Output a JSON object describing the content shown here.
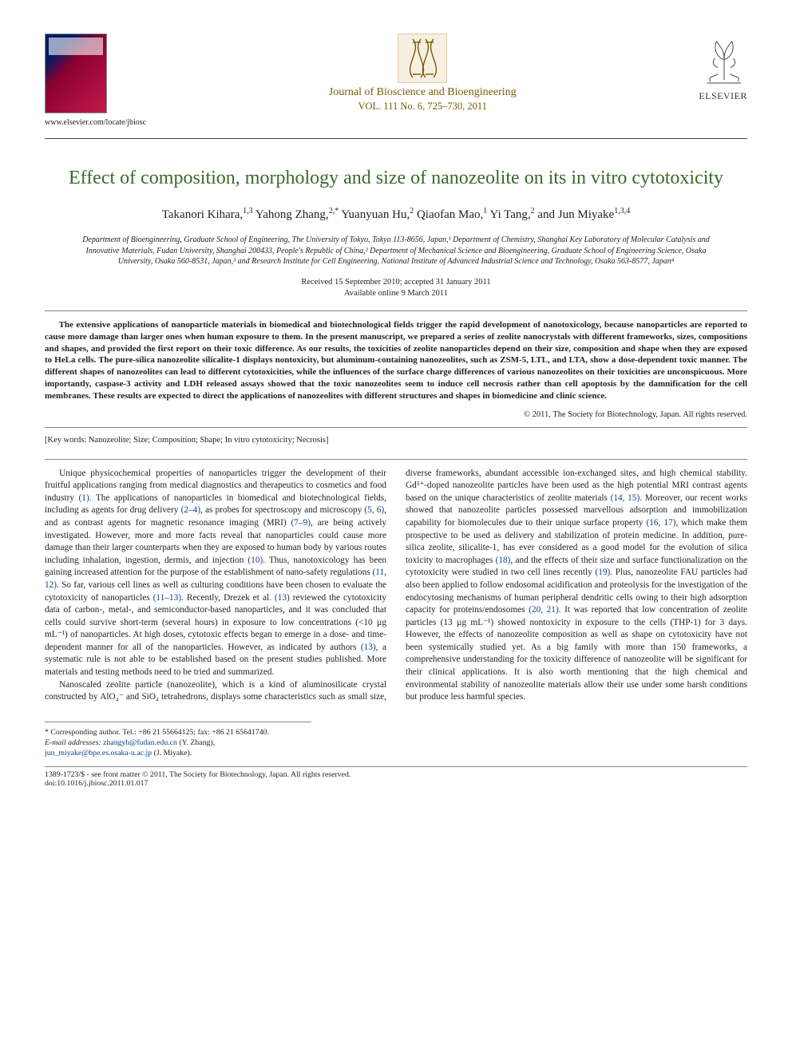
{
  "header": {
    "elsevier_locate": "www.elsevier.com/locate/jbiosc",
    "journal_name": "Journal of Bioscience and Bioengineering",
    "journal_volume_line": "VOL. 111 No. 6, 725–730, 2011",
    "publisher_name": "ELSEVIER"
  },
  "article": {
    "title": "Effect of composition, morphology and size of nanozeolite on its in vitro cytotoxicity",
    "authors_html": "Takanori Kihara,<sup>1,3</sup> Yahong Zhang,<sup>2,*</sup> Yuanyuan Hu,<sup>2</sup> Qiaofan Mao,<sup>1</sup> Yi Tang,<sup>2</sup> and Jun Miyake<sup>1,3,4</sup>",
    "affiliations": "Department of Bioengineering, Graduate School of Engineering, The University of Tokyo, Tokyo 113-8656, Japan,¹ Department of Chemistry, Shanghai Key Laboratory of Molecular Catalysis and Innovative Materials, Fudan University, Shanghai 200433, People's Republic of China,² Department of Mechanical Science and Bioengineering, Graduate School of Engineering Science, Osaka University, Osaka 560-8531, Japan,³ and Research Institute for Cell Engineering, National Institute of Advanced Industrial Science and Technology, Osaka 563-8577, Japan⁴",
    "dates_line1": "Received 15 September 2010; accepted 31 January 2011",
    "dates_line2": "Available online 9 March 2011",
    "abstract": "The extensive applications of nanoparticle materials in biomedical and biotechnological fields trigger the rapid development of nanotoxicology, because nanoparticles are reported to cause more damage than larger ones when human exposure to them. In the present manuscript, we prepared a series of zeolite nanocrystals with different frameworks, sizes, compositions and shapes, and provided the first report on their toxic difference. As our results, the toxicities of zeolite nanoparticles depend on their size, composition and shape when they are exposed to HeLa cells. The pure-silica nanozeolite silicalite-1 displays nontoxicity, but aluminum-containing nanozeolites, such as ZSM-5, LTL, and LTA, show a dose-dependent toxic manner. The different shapes of nanozeolites can lead to different cytotoxicities, while the influences of the surface charge differences of various nanozeolites on their toxicities are unconspicuous. More importantly, caspase-3 activity and LDH released assays showed that the toxic nanozeolites seem to induce cell necrosis rather than cell apoptosis by the damnification for the cell membranes. These results are expected to direct the applications of nanozeolites with different structures and shapes in biomedicine and clinic science.",
    "copyright": "© 2011, The Society for Biotechnology, Japan. All rights reserved.",
    "keywords": "[Key words: Nanozeolite; Size; Composition; Shape; In vitro cytotoxicity; Necrosis]"
  },
  "body": {
    "col1_para": "Unique physicochemical properties of nanoparticles trigger the development of their fruitful applications ranging from medical diagnostics and therapeutics to cosmetics and food industry (1). The applications of nanoparticles in biomedical and biotechnological fields, including as agents for drug delivery (2–4), as probes for spectroscopy and microscopy (5, 6), and as contrast agents for magnetic resonance imaging (MRI) (7–9), are being actively investigated. However, more and more facts reveal that nanoparticles could cause more damage than their larger counterparts when they are exposed to human body by various routes including inhalation, ingestion, dermis, and injection (10). Thus, nanotoxicology has been gaining increased attention for the purpose of the establishment of nano-safety regulations (11, 12). So far, various cell lines as well as culturing conditions have been chosen to evaluate the cytotoxicity of nanoparticles (11–13). Recently, Drezek et al. (13) reviewed the cytotoxicity data of carbon-, metal-, and semiconductor-based nanoparticles, and it was concluded that cells could survive short-term (several hours) in exposure to low concentrations (<10 µg mL⁻¹) of nanoparticles. At high doses, cytotoxic effects began to emerge in a dose- and time-dependent manner for all of the nanoparticles. However, as indicated by authors (13), a systematic rule is not able to be established based on the present studies published. More materials and testing methods need to be tried and summarized.",
    "col2_para": "Nanoscaled zeolite particle (nanozeolite), which is a kind of aluminosilicate crystal constructed by AlO₄⁻ and SiO₄ tetrahedrons, displays some characteristics such as small size, diverse frameworks, abundant accessible ion-exchanged sites, and high chemical stability. Gd³⁺-doped nanozeolite particles have been used as the high potential MRI contrast agents based on the unique characteristics of zeolite materials (14, 15). Moreover, our recent works showed that nanozeolite particles possessed marvellous adsorption and immobilization capability for biomolecules due to their unique surface property (16, 17), which make them prospective to be used as delivery and stabilization of protein medicine. In addition, pure-silica zeolite, silicalite-1, has ever considered as a good model for the evolution of silica toxicity to macrophages (18), and the effects of their size and surface functionalization on the cytotoxicity were studied in two cell lines recently (19). Plus, nanozeolite FAU particles had also been applied to follow endosomal acidification and proteolysis for the investigation of the endocytosing mechanisms of human peripheral dendritic cells owing to their high adsorption capacity for proteins/endosomes (20, 21). It was reported that low concentration of zeolite particles (13 µg mL⁻¹) showed nontoxicity in exposure to the cells (THP-1) for 3 days. However, the effects of nanozeolite composition as well as shape on cytotoxicity have not been systemically studied yet. As a big family with more than 150 frameworks, a comprehensive understanding for the toxicity difference of nanozeolite will be significant for their clinical applications. It is also worth mentioning that the high chemical and environmental stability of nanozeolite materials allow their use under some harsh conditions but produce less harmful species."
  },
  "footer": {
    "corresponding": "* Corresponding author. Tel.: +86 21 55664125; fax: +86 21 65641740.",
    "emails_label": "E-mail addresses:",
    "email1": "zhangyh@fudan.edu.cn",
    "email1_who": "(Y. Zhang),",
    "email2": "jun_miyake@bpe.es.osaka-u.ac.jp",
    "email2_who": "(J. Miyake).",
    "issn_line": "1389-1723/$ - see front matter © 2011, The Society for Biotechnology, Japan. All rights reserved.",
    "doi_line": "doi:10.1016/j.jbiosc.2011.01.017"
  },
  "colors": {
    "title_green": "#386b28",
    "journal_gold": "#7a5a00",
    "link_blue": "#0a3f8a"
  }
}
